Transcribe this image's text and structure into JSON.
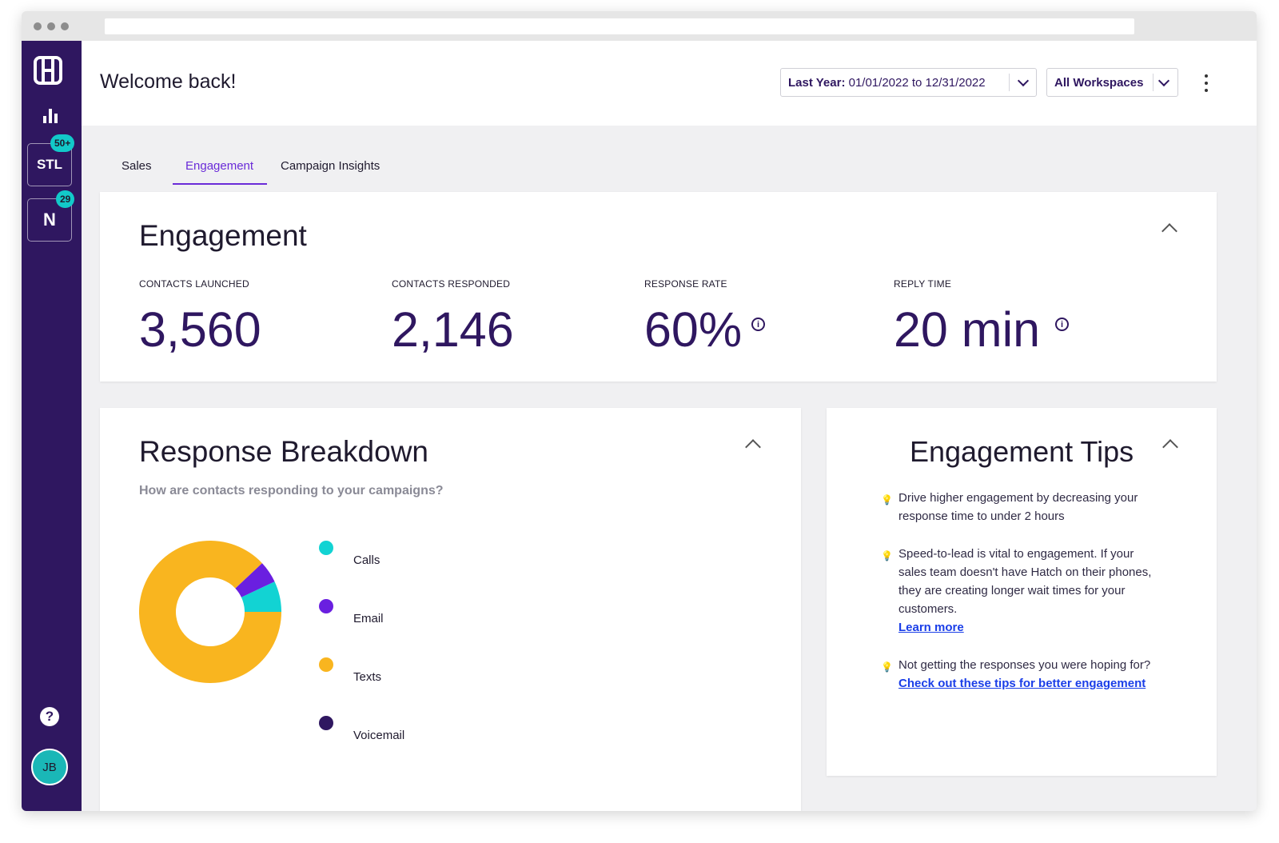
{
  "sidebar": {
    "workspaces": [
      {
        "label": "STL",
        "badge": "50+"
      },
      {
        "label": "N",
        "badge": "29"
      }
    ],
    "help_icon": "?",
    "avatar": "JB"
  },
  "header": {
    "welcome": "Welcome back!",
    "date_filter": {
      "prefix": "Last Year:",
      "range": "01/01/2022 to 12/31/2022"
    },
    "workspace_filter": "All Workspaces"
  },
  "tabs": [
    {
      "label": "Sales",
      "active": false
    },
    {
      "label": "Engagement",
      "active": true
    },
    {
      "label": "Campaign Insights",
      "active": false
    }
  ],
  "engagement": {
    "title": "Engagement",
    "stats": [
      {
        "label": "CONTACTS LAUNCHED",
        "value": "3,560"
      },
      {
        "label": "CONTACTS RESPONDED",
        "value": "2,146"
      },
      {
        "label": "RESPONSE RATE",
        "value": "60%"
      },
      {
        "label": "REPLY TIME",
        "value": "20 min"
      }
    ]
  },
  "breakdown": {
    "title": "Response Breakdown",
    "subtitle": "How are contacts responding to your campaigns?"
  },
  "chart_data": {
    "type": "pie",
    "categories": [
      "Calls",
      "Email",
      "Texts",
      "Voicemail"
    ],
    "values": [
      7,
      5,
      88,
      0
    ],
    "colors": [
      "#12d3d3",
      "#6a1fe0",
      "#f9b51f",
      "#2f1760"
    ],
    "donut": true,
    "legend": "right"
  },
  "tips": {
    "title": "Engagement Tips",
    "items": [
      {
        "text": "Drive higher engagement by decreasing your response time to under 2 hours",
        "link": ""
      },
      {
        "text": "Speed-to-lead is vital to engagement. If your sales team doesn't have Hatch on their phones, they are creating longer wait times for your customers.",
        "link": "Learn more"
      },
      {
        "text": "Not getting the responses you were hoping for?",
        "link": "Check out these tips for better engagement"
      }
    ]
  }
}
